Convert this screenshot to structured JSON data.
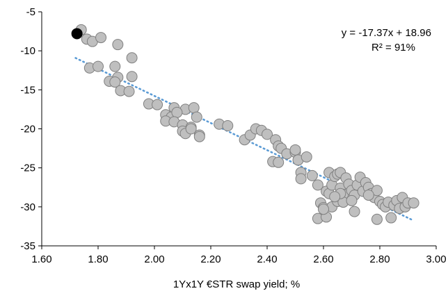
{
  "chart_data": {
    "type": "scatter",
    "xlabel": "1Yx1Y €STR swap yield; %",
    "ylabel": "",
    "xlim": [
      1.6,
      3.0
    ],
    "ylim": [
      -35,
      -5
    ],
    "x_ticks": [
      "1.60",
      "1.80",
      "2.00",
      "2.20",
      "2.40",
      "2.60",
      "2.80",
      "3.00"
    ],
    "y_ticks": [
      "-5",
      "-10",
      "-15",
      "-20",
      "-25",
      "-30",
      "-35"
    ],
    "grid": false,
    "annotations": [
      "y = -17.37x + 18.96",
      "R² = 91%"
    ],
    "trendline": {
      "slope": -17.37,
      "intercept": 18.96,
      "x_range": [
        1.72,
        2.92
      ],
      "color": "#5b9bd5",
      "style": "dotted"
    },
    "colors": {
      "points": "#bfbfbf",
      "point_edge": "#7f7f7f",
      "highlight": "#000000"
    },
    "highlight_point": {
      "x": 1.725,
      "y": -7.8
    },
    "series": [
      {
        "points": [
          [
            1.74,
            -7.3
          ],
          [
            1.76,
            -8.5
          ],
          [
            1.78,
            -8.8
          ],
          [
            1.81,
            -8.3
          ],
          [
            1.87,
            -9.2
          ],
          [
            1.92,
            -10.9
          ],
          [
            1.77,
            -12.2
          ],
          [
            1.8,
            -12.0
          ],
          [
            1.86,
            -12.0
          ],
          [
            1.84,
            -13.9
          ],
          [
            1.87,
            -13.4
          ],
          [
            1.86,
            -14.0
          ],
          [
            1.92,
            -13.3
          ],
          [
            1.88,
            -15.1
          ],
          [
            1.91,
            -15.2
          ],
          [
            1.98,
            -16.8
          ],
          [
            2.01,
            -16.9
          ],
          [
            2.07,
            -17.3
          ],
          [
            2.11,
            -17.5
          ],
          [
            2.14,
            -17.3
          ],
          [
            2.04,
            -18.2
          ],
          [
            2.06,
            -18.5
          ],
          [
            2.08,
            -17.9
          ],
          [
            2.15,
            -18.5
          ],
          [
            2.04,
            -19.0
          ],
          [
            2.07,
            -19.1
          ],
          [
            2.1,
            -19.5
          ],
          [
            2.13,
            -19.8
          ],
          [
            2.1,
            -20.3
          ],
          [
            2.11,
            -20.6
          ],
          [
            2.13,
            -20.0
          ],
          [
            2.16,
            -20.8
          ],
          [
            2.16,
            -21.0
          ],
          [
            2.23,
            -19.4
          ],
          [
            2.26,
            -19.6
          ],
          [
            2.32,
            -21.4
          ],
          [
            2.34,
            -20.8
          ],
          [
            2.36,
            -20.0
          ],
          [
            2.38,
            -20.2
          ],
          [
            2.4,
            -20.7
          ],
          [
            2.43,
            -21.4
          ],
          [
            2.42,
            -24.2
          ],
          [
            2.44,
            -24.3
          ],
          [
            2.44,
            -22.2
          ],
          [
            2.45,
            -22.5
          ],
          [
            2.47,
            -23.2
          ],
          [
            2.5,
            -23.0
          ],
          [
            2.5,
            -22.7
          ],
          [
            2.51,
            -24.0
          ],
          [
            2.52,
            -25.6
          ],
          [
            2.52,
            -26.4
          ],
          [
            2.54,
            -23.6
          ],
          [
            2.56,
            -26.0
          ],
          [
            2.58,
            -27.2
          ],
          [
            2.59,
            -29.5
          ],
          [
            2.6,
            -30.1
          ],
          [
            2.61,
            -28.0
          ],
          [
            2.62,
            -25.6
          ],
          [
            2.62,
            -28.3
          ],
          [
            2.63,
            -27.2
          ],
          [
            2.64,
            -26.1
          ],
          [
            2.65,
            -25.8
          ],
          [
            2.66,
            -25.6
          ],
          [
            2.66,
            -27.6
          ],
          [
            2.67,
            -28.4
          ],
          [
            2.68,
            -26.3
          ],
          [
            2.69,
            -27.1
          ],
          [
            2.7,
            -27.9
          ],
          [
            2.71,
            -28.5
          ],
          [
            2.72,
            -27.2
          ],
          [
            2.73,
            -26.2
          ],
          [
            2.74,
            -28.0
          ],
          [
            2.75,
            -26.9
          ],
          [
            2.76,
            -27.5
          ],
          [
            2.77,
            -28.3
          ],
          [
            2.78,
            -28.8
          ],
          [
            2.79,
            -27.9
          ],
          [
            2.8,
            -29.3
          ],
          [
            2.81,
            -29.7
          ],
          [
            2.82,
            -30.0
          ],
          [
            2.83,
            -29.4
          ],
          [
            2.84,
            -31.4
          ],
          [
            2.85,
            -29.8
          ],
          [
            2.86,
            -29.2
          ],
          [
            2.87,
            -30.2
          ],
          [
            2.88,
            -28.8
          ],
          [
            2.89,
            -30.0
          ],
          [
            2.9,
            -29.5
          ],
          [
            2.92,
            -29.5
          ],
          [
            2.58,
            -31.5
          ],
          [
            2.61,
            -31.3
          ],
          [
            2.63,
            -30.0
          ],
          [
            2.65,
            -29.3
          ],
          [
            2.67,
            -29.4
          ],
          [
            2.71,
            -30.6
          ],
          [
            2.79,
            -31.6
          ],
          [
            2.6,
            -30.3
          ],
          [
            2.66,
            -28.3
          ],
          [
            2.7,
            -29.2
          ],
          [
            2.76,
            -28.5
          ],
          [
            2.64,
            -28.7
          ]
        ]
      }
    ]
  }
}
